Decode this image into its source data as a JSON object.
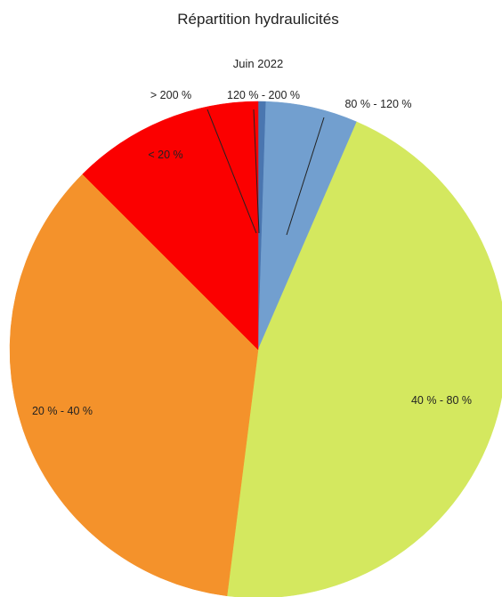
{
  "chart_data": {
    "type": "pie",
    "title": "Répartition hydraulicités",
    "subtitle": "Juin 2022",
    "unit": "%",
    "slices": [
      {
        "label": "> 200 %",
        "value": 0.0,
        "color": "#1f5fbf"
      },
      {
        "label": "120 % - 200 %",
        "value": 0.5,
        "color": "#4a76b0"
      },
      {
        "label": "80 % - 120 %",
        "value": 6.0,
        "color": "#729fcf"
      },
      {
        "label": "40 % - 80 %",
        "value": 45.5,
        "color": "#d4e85f"
      },
      {
        "label": "20 % - 40 %",
        "value": 35.5,
        "color": "#f4922b"
      },
      {
        "label": "< 20 %",
        "value": 12.5,
        "color": "#fb0000"
      }
    ],
    "start_angle_deg": 0,
    "direction": "clockwise",
    "legend": "none",
    "labels_outside_for": [
      "> 200 %",
      "120 % - 200 %",
      "80 % - 120 %"
    ]
  }
}
